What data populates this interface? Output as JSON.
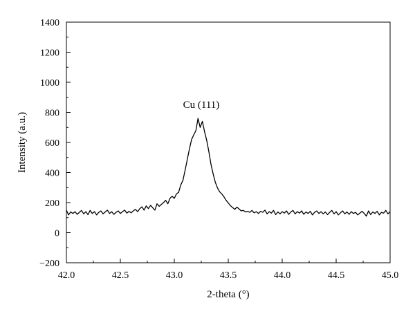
{
  "chart_data": {
    "type": "line",
    "xlabel": "2-theta (°)",
    "ylabel": "Intensity (a.u.)",
    "xlim": [
      42.0,
      45.0
    ],
    "ylim": [
      -200,
      1400
    ],
    "x_ticks": [
      "42.0",
      "42.5",
      "43.0",
      "43.5",
      "44.0",
      "44.5",
      "45.0"
    ],
    "y_ticks": [
      "−200",
      "0",
      "200",
      "400",
      "600",
      "800",
      "1000",
      "1200",
      "1400"
    ],
    "grid": false,
    "legend": "none",
    "line_color": "#000000",
    "annotations": [
      {
        "text": "Cu (111)",
        "x": 43.25,
        "y": 830
      }
    ],
    "series": [
      {
        "x": [
          42.0,
          42.02,
          42.04,
          42.06,
          42.08,
          42.1,
          42.12,
          42.14,
          42.16,
          42.18,
          42.2,
          42.22,
          42.24,
          42.26,
          42.28,
          42.3,
          42.32,
          42.34,
          42.36,
          42.38,
          42.4,
          42.42,
          42.44,
          42.46,
          42.48,
          42.5,
          42.52,
          42.54,
          42.56,
          42.58,
          42.6,
          42.62,
          42.64,
          42.66,
          42.68,
          42.7,
          42.72,
          42.74,
          42.76,
          42.78,
          42.8,
          42.82,
          42.84,
          42.86,
          42.88,
          42.9,
          42.92,
          42.94,
          42.96,
          42.98,
          43.0,
          43.02,
          43.04,
          43.06,
          43.08,
          43.1,
          43.12,
          43.14,
          43.16,
          43.18,
          43.2,
          43.22,
          43.24,
          43.26,
          43.28,
          43.3,
          43.32,
          43.34,
          43.36,
          43.38,
          43.4,
          43.42,
          43.44,
          43.46,
          43.48,
          43.5,
          43.52,
          43.54,
          43.56,
          43.58,
          43.6,
          43.62,
          43.64,
          43.66,
          43.68,
          43.7,
          43.72,
          43.74,
          43.76,
          43.78,
          43.8,
          43.82,
          43.84,
          43.86,
          43.88,
          43.9,
          43.92,
          43.94,
          43.96,
          43.98,
          44.0,
          44.02,
          44.04,
          44.06,
          44.08,
          44.1,
          44.12,
          44.14,
          44.16,
          44.18,
          44.2,
          44.22,
          44.24,
          44.26,
          44.28,
          44.3,
          44.32,
          44.34,
          44.36,
          44.38,
          44.4,
          44.42,
          44.44,
          44.46,
          44.48,
          44.5,
          44.52,
          44.54,
          44.56,
          44.58,
          44.6,
          44.62,
          44.64,
          44.66,
          44.68,
          44.7,
          44.72,
          44.74,
          44.76,
          44.78,
          44.8,
          44.82,
          44.84,
          44.86,
          44.88,
          44.9,
          44.92,
          44.94,
          44.96,
          44.98,
          45.0
        ],
        "values": [
          150,
          118,
          138,
          128,
          140,
          122,
          135,
          148,
          125,
          140,
          120,
          148,
          128,
          140,
          118,
          135,
          145,
          125,
          138,
          150,
          128,
          140,
          122,
          135,
          145,
          128,
          140,
          150,
          130,
          142,
          132,
          145,
          155,
          140,
          160,
          172,
          150,
          178,
          160,
          182,
          165,
          150,
          192,
          175,
          188,
          200,
          215,
          192,
          228,
          242,
          228,
          258,
          268,
          318,
          348,
          415,
          485,
          555,
          620,
          650,
          678,
          760,
          700,
          740,
          672,
          615,
          540,
          455,
          390,
          335,
          298,
          272,
          258,
          238,
          215,
          198,
          180,
          168,
          155,
          170,
          158,
          145,
          148,
          138,
          142,
          135,
          148,
          132,
          140,
          128,
          142,
          135,
          150,
          125,
          140,
          130,
          148,
          120,
          138,
          125,
          140,
          130,
          145,
          122,
          138,
          148,
          125,
          140,
          130,
          145,
          122,
          138,
          128,
          142,
          118,
          135,
          145,
          128,
          140,
          125,
          138,
          120,
          135,
          148,
          125,
          140,
          118,
          132,
          145,
          125,
          138,
          122,
          140,
          128,
          135,
          118,
          130,
          142,
          128,
          110,
          145,
          120,
          138,
          128,
          142,
          118,
          135,
          130,
          148,
          125,
          140
        ]
      }
    ]
  }
}
